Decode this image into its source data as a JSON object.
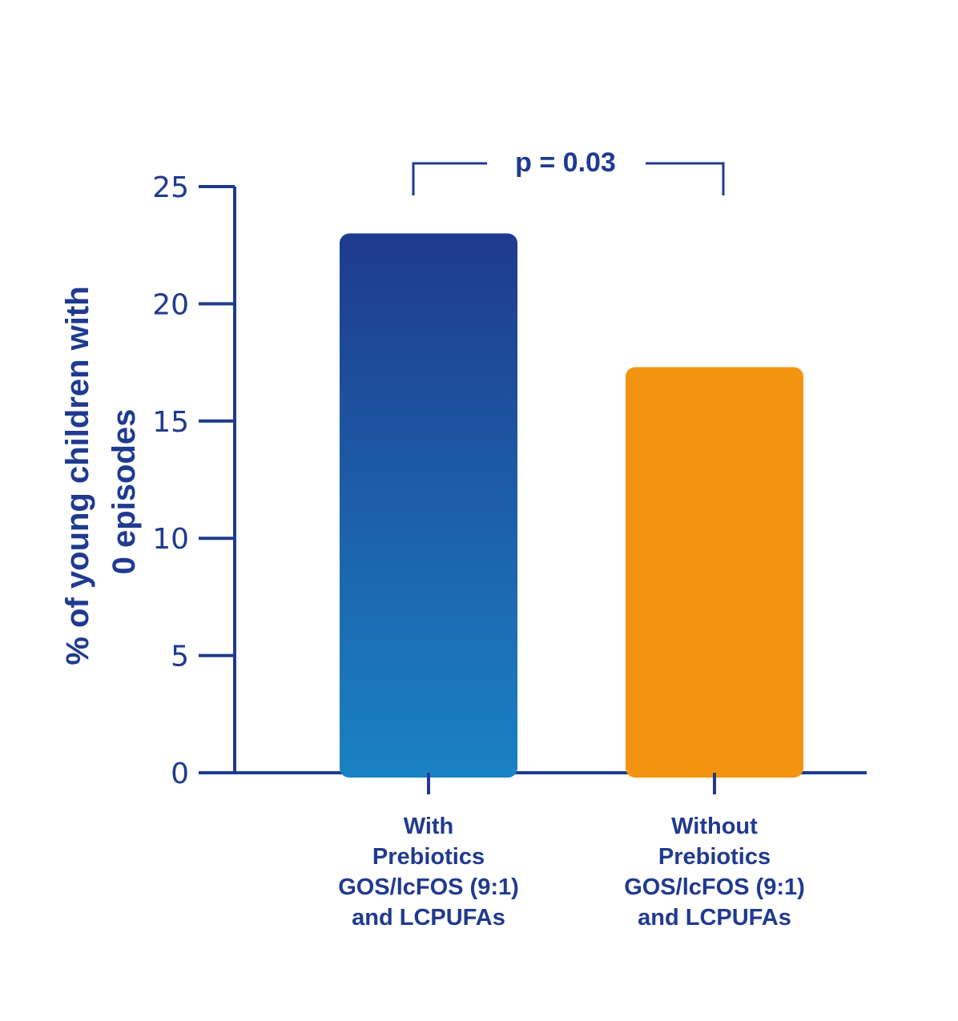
{
  "chart_data": {
    "type": "bar",
    "categories": [
      [
        "With",
        "Prebiotics",
        "GOS/lcFOS (9:1)",
        "and LCPUFAs"
      ],
      [
        "Without",
        "Prebiotics",
        "GOS/lcFOS (9:1)",
        "and LCPUFAs"
      ]
    ],
    "values": [
      23,
      17.3
    ],
    "ylabel_lines": [
      "% of young children with",
      "0 episodes"
    ],
    "ylim": [
      0,
      25
    ],
    "yticks": [
      0,
      5,
      10,
      15,
      20,
      25
    ],
    "annotation": "p = 0.03",
    "grid": false,
    "colors": {
      "axis": "#1f3a8f",
      "text": "#1f3a8f",
      "bar1_top": "#1f3a8f",
      "bar1_bottom": "#1a82c4",
      "bar2": "#f39411"
    }
  }
}
